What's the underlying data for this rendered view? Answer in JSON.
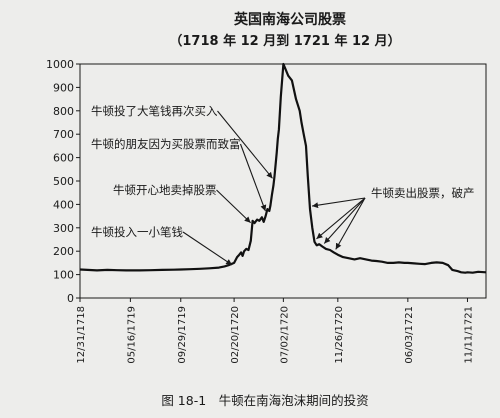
{
  "chart_data": {
    "type": "line",
    "title": "英国南海公司股票",
    "subtitle": "（1718 年 12 月到 1721 年 12 月）",
    "caption": "图 18-1　牛顿在南海泡沫期间的投资",
    "ylim": [
      0,
      1000
    ],
    "yticks": [
      0,
      100,
      200,
      300,
      400,
      500,
      600,
      700,
      800,
      900,
      1000
    ],
    "xlim": [
      "1718-12-31",
      "1721-12-31"
    ],
    "xtick_labels": [
      "12/31/1718",
      "05/16/1719",
      "09/29/1719",
      "02/20/1720",
      "07/02/1720",
      "11/26/1720",
      "06/03/1721",
      "11/11/1721"
    ],
    "xtick_dates": [
      "1718-12-31",
      "1719-05-16",
      "1719-09-29",
      "1720-02-20",
      "1720-07-02",
      "1720-11-26",
      "1721-06-03",
      "1721-11-11"
    ],
    "grid": false,
    "series": [
      {
        "x": [
          "1718-12-31",
          "1719-01-20",
          "1719-02-15",
          "1719-03-15",
          "1719-04-10",
          "1719-05-05",
          "1719-05-16",
          "1719-06-10",
          "1719-07-10",
          "1719-08-10",
          "1719-09-10",
          "1719-09-29",
          "1719-10-25",
          "1719-11-20",
          "1719-12-15",
          "1720-01-10",
          "1720-01-25",
          "1720-02-05",
          "1720-02-20",
          "1720-02-28",
          "1720-03-05",
          "1720-03-10",
          "1720-03-14",
          "1720-03-18",
          "1720-03-24",
          "1720-03-30",
          "1720-04-05",
          "1720-04-10",
          "1720-04-15",
          "1720-04-22",
          "1720-04-28",
          "1720-05-05",
          "1720-05-10",
          "1720-05-15",
          "1720-05-20",
          "1720-05-25",
          "1720-05-28",
          "1720-06-01",
          "1720-06-05",
          "1720-06-08",
          "1720-06-11",
          "1720-06-14",
          "1720-06-17",
          "1720-06-20",
          "1720-06-25",
          "1720-07-02",
          "1720-07-15",
          "1720-07-25",
          "1720-08-05",
          "1720-08-15",
          "1720-08-20",
          "1720-08-26",
          "1720-09-01",
          "1720-09-06",
          "1720-09-12",
          "1720-09-18",
          "1720-09-24",
          "1720-09-30",
          "1720-10-07",
          "1720-10-15",
          "1720-10-25",
          "1720-11-05",
          "1720-11-15",
          "1720-11-26",
          "1720-12-10",
          "1720-12-25",
          "1721-01-10",
          "1721-01-25",
          "1721-02-10",
          "1721-02-25",
          "1721-03-10",
          "1721-03-25",
          "1721-04-10",
          "1721-04-25",
          "1721-05-10",
          "1721-05-25",
          "1721-06-03",
          "1721-06-20",
          "1721-07-05",
          "1721-07-20",
          "1721-08-05",
          "1721-08-20",
          "1721-09-05",
          "1721-09-20",
          "1721-10-01",
          "1721-10-15",
          "1721-10-25",
          "1721-11-05",
          "1721-11-11",
          "1721-11-25",
          "1721-12-10",
          "1721-12-31"
        ],
        "y": [
          122,
          120,
          118,
          120,
          119,
          118,
          118,
          118,
          119,
          120,
          121,
          122,
          123,
          125,
          127,
          130,
          135,
          140,
          150,
          175,
          185,
          195,
          180,
          200,
          210,
          205,
          245,
          330,
          320,
          335,
          330,
          345,
          325,
          350,
          380,
          372,
          395,
          440,
          480,
          520,
          570,
          620,
          680,
          720,
          860,
          1000,
          950,
          930,
          850,
          800,
          750,
          700,
          650,
          520,
          380,
          300,
          240,
          225,
          230,
          220,
          210,
          205,
          195,
          185,
          175,
          170,
          165,
          170,
          165,
          160,
          158,
          155,
          150,
          150,
          152,
          150,
          150,
          148,
          146,
          145,
          150,
          152,
          150,
          140,
          120,
          115,
          110,
          108,
          110,
          108,
          112,
          110
        ]
      }
    ],
    "annotations": [
      {
        "text": "牛顿投了大笔钱再次买入",
        "target": [
          "1720-06-08",
          520
        ]
      },
      {
        "text": "牛顿的朋友因为买股票而致富",
        "target": [
          "1720-05-20",
          380
        ]
      },
      {
        "text": "牛顿开心地卖掉股票",
        "target": [
          "1720-04-10",
          330
        ]
      },
      {
        "text": "牛顿投入一小笔钱",
        "target": [
          "1720-02-20",
          150
        ]
      },
      {
        "text": "牛顿卖出股票，破产",
        "targets": [
          [
            "1720-09-12",
            380
          ],
          [
            "1720-09-24",
            240
          ],
          [
            "1720-10-15",
            220
          ],
          [
            "1720-11-15",
            195
          ]
        ]
      }
    ]
  }
}
